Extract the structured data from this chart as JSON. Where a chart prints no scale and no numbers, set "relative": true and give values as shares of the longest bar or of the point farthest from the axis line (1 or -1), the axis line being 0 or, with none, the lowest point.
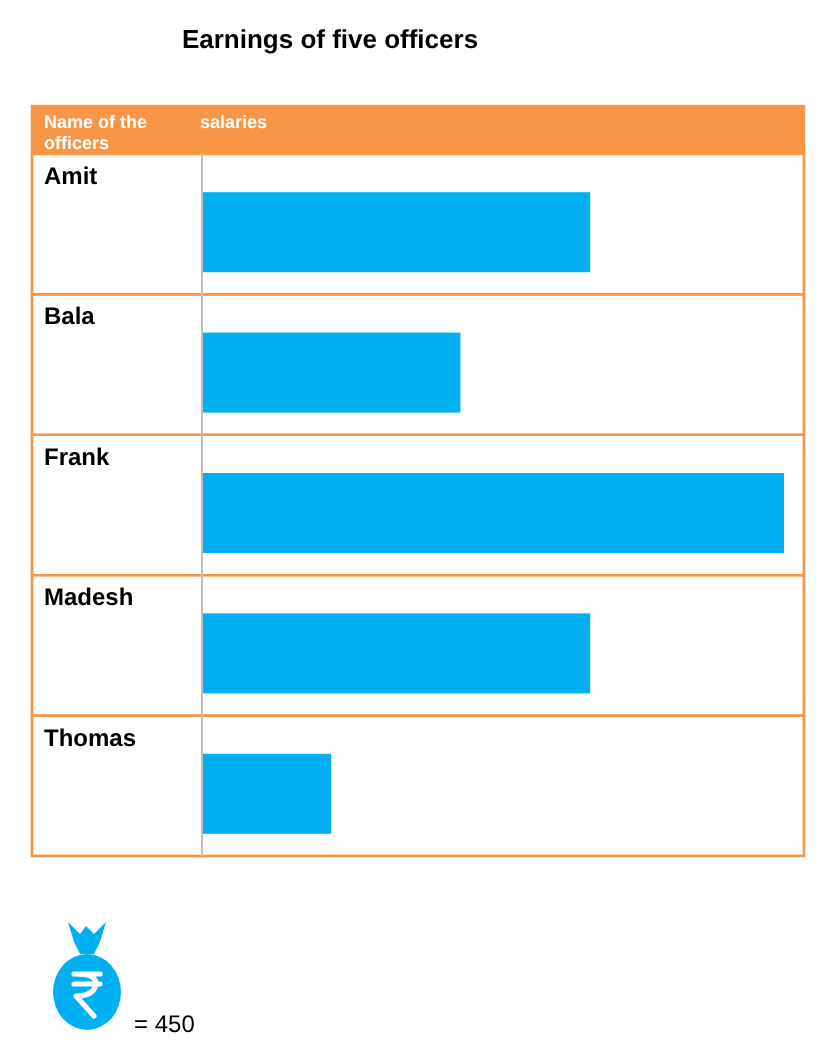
{
  "chart_data": {
    "type": "bar",
    "orientation": "horizontal",
    "relative": true,
    "title": "Earnings of five officers",
    "ylabel": "Name of the officers",
    "xlabel": "salaries",
    "categories": [
      "Amit",
      "Bala",
      "Frank",
      "Madesh",
      "Thomas"
    ],
    "values": [
      0.667,
      0.444,
      1,
      0.667,
      0.222
    ],
    "color": "#00b0f0",
    "annotations": [
      "= 450"
    ]
  }
}
